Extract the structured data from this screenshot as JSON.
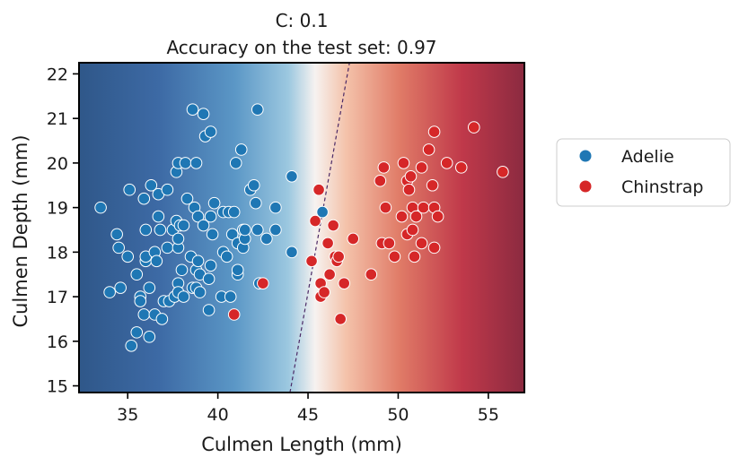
{
  "chart_data": {
    "type": "scatter",
    "title": "C: 0.1",
    "subtitle": "Accuracy on the test set: 0.97",
    "xlabel": "Culmen Length (mm)",
    "ylabel": "Culmen Depth (mm)",
    "xlim": [
      32.3,
      57.0
    ],
    "ylim": [
      14.85,
      22.25
    ],
    "xticks": [
      35,
      40,
      45,
      50,
      55
    ],
    "yticks": [
      15,
      16,
      17,
      18,
      19,
      20,
      21,
      22
    ],
    "xtick_labels": [
      "35",
      "40",
      "45",
      "50",
      "55"
    ],
    "ytick_labels": [
      "15",
      "16",
      "17",
      "18",
      "19",
      "20",
      "21",
      "22"
    ],
    "legend_position": "right",
    "grid": false,
    "background": "diverging decision function RdBu, blue for Adelie, red for Chinstrap",
    "decision_boundary": [
      [
        44.0,
        14.85
      ],
      [
        47.3,
        22.25
      ]
    ],
    "colors": {
      "Adelie": "#1f77b4",
      "Chinstrap": "#d62728",
      "boundary": "#4b2a66",
      "bg_blue": "#2f5789",
      "bg_red": "#8b2a40"
    },
    "series": [
      {
        "name": "Adelie",
        "points": [
          [
            33.5,
            19.0
          ],
          [
            34.0,
            17.1
          ],
          [
            34.4,
            18.4
          ],
          [
            34.5,
            18.1
          ],
          [
            34.6,
            17.2
          ],
          [
            35.0,
            17.9
          ],
          [
            35.1,
            19.4
          ],
          [
            35.2,
            15.9
          ],
          [
            35.5,
            16.2
          ],
          [
            35.5,
            17.5
          ],
          [
            35.7,
            17.0
          ],
          [
            35.7,
            16.9
          ],
          [
            35.9,
            19.2
          ],
          [
            35.9,
            16.6
          ],
          [
            36.0,
            17.8
          ],
          [
            36.0,
            17.9
          ],
          [
            36.0,
            18.5
          ],
          [
            36.2,
            16.1
          ],
          [
            36.2,
            17.2
          ],
          [
            36.3,
            19.5
          ],
          [
            36.5,
            16.6
          ],
          [
            36.5,
            18.0
          ],
          [
            36.6,
            17.8
          ],
          [
            36.7,
            19.3
          ],
          [
            36.7,
            18.8
          ],
          [
            36.8,
            18.5
          ],
          [
            36.9,
            16.5
          ],
          [
            37.0,
            16.9
          ],
          [
            37.2,
            18.1
          ],
          [
            37.2,
            19.4
          ],
          [
            37.3,
            16.9
          ],
          [
            37.5,
            18.5
          ],
          [
            37.6,
            17.0
          ],
          [
            37.7,
            18.7
          ],
          [
            37.7,
            19.8
          ],
          [
            37.8,
            17.3
          ],
          [
            37.8,
            17.1
          ],
          [
            37.8,
            18.1
          ],
          [
            37.8,
            18.3
          ],
          [
            37.8,
            20.0
          ],
          [
            37.9,
            18.6
          ],
          [
            38.0,
            17.6
          ],
          [
            38.1,
            18.6
          ],
          [
            38.1,
            17.0
          ],
          [
            38.2,
            20.0
          ],
          [
            38.3,
            19.2
          ],
          [
            38.5,
            17.9
          ],
          [
            38.6,
            17.2
          ],
          [
            38.6,
            21.2
          ],
          [
            38.7,
            19.0
          ],
          [
            38.8,
            17.2
          ],
          [
            38.8,
            20.0
          ],
          [
            38.8,
            17.6
          ],
          [
            38.9,
            17.8
          ],
          [
            38.9,
            18.8
          ],
          [
            39.0,
            17.1
          ],
          [
            39.0,
            17.5
          ],
          [
            39.2,
            18.6
          ],
          [
            39.2,
            21.1
          ],
          [
            39.3,
            20.6
          ],
          [
            39.5,
            17.4
          ],
          [
            39.5,
            16.7
          ],
          [
            39.6,
            17.7
          ],
          [
            39.6,
            18.8
          ],
          [
            39.6,
            20.7
          ],
          [
            39.7,
            18.4
          ],
          [
            39.8,
            19.1
          ],
          [
            40.2,
            17.0
          ],
          [
            40.3,
            18.0
          ],
          [
            40.3,
            18.9
          ],
          [
            40.5,
            17.9
          ],
          [
            40.6,
            18.9
          ],
          [
            40.7,
            17.0
          ],
          [
            40.8,
            18.4
          ],
          [
            40.9,
            18.9
          ],
          [
            41.0,
            20.0
          ],
          [
            41.1,
            17.5
          ],
          [
            41.1,
            18.2
          ],
          [
            41.1,
            17.6
          ],
          [
            41.3,
            20.3
          ],
          [
            41.4,
            18.5
          ],
          [
            41.4,
            18.1
          ],
          [
            41.5,
            18.3
          ],
          [
            41.5,
            18.5
          ],
          [
            41.8,
            19.4
          ],
          [
            42.0,
            19.5
          ],
          [
            42.1,
            19.1
          ],
          [
            42.2,
            18.5
          ],
          [
            42.2,
            21.2
          ],
          [
            42.3,
            17.3
          ],
          [
            42.7,
            18.3
          ],
          [
            43.2,
            19.0
          ],
          [
            43.2,
            18.5
          ],
          [
            44.1,
            19.7
          ],
          [
            44.1,
            18.0
          ],
          [
            45.8,
            18.9
          ]
        ]
      },
      {
        "name": "Chinstrap",
        "points": [
          [
            40.9,
            16.6
          ],
          [
            42.5,
            17.3
          ],
          [
            45.2,
            17.8
          ],
          [
            45.4,
            18.7
          ],
          [
            45.6,
            19.4
          ],
          [
            45.7,
            17.3
          ],
          [
            45.7,
            17.0
          ],
          [
            45.9,
            17.1
          ],
          [
            46.1,
            18.2
          ],
          [
            46.2,
            17.5
          ],
          [
            46.4,
            18.6
          ],
          [
            46.5,
            17.9
          ],
          [
            46.6,
            17.8
          ],
          [
            46.7,
            17.9
          ],
          [
            46.8,
            16.5
          ],
          [
            47.0,
            17.3
          ],
          [
            47.5,
            18.3
          ],
          [
            48.5,
            17.5
          ],
          [
            49.0,
            19.6
          ],
          [
            49.1,
            18.2
          ],
          [
            49.2,
            19.9
          ],
          [
            49.3,
            19.0
          ],
          [
            49.5,
            18.2
          ],
          [
            49.8,
            17.9
          ],
          [
            50.2,
            18.8
          ],
          [
            50.3,
            20.0
          ],
          [
            50.5,
            19.6
          ],
          [
            50.5,
            18.4
          ],
          [
            50.6,
            19.4
          ],
          [
            50.7,
            19.7
          ],
          [
            50.8,
            18.5
          ],
          [
            50.8,
            19.0
          ],
          [
            50.9,
            17.9
          ],
          [
            51.0,
            18.8
          ],
          [
            51.3,
            19.9
          ],
          [
            51.3,
            18.2
          ],
          [
            51.4,
            19.0
          ],
          [
            51.7,
            20.3
          ],
          [
            51.9,
            19.5
          ],
          [
            52.0,
            20.7
          ],
          [
            52.0,
            18.1
          ],
          [
            52.0,
            19.0
          ],
          [
            52.2,
            18.8
          ],
          [
            52.7,
            20.0
          ],
          [
            53.5,
            19.9
          ],
          [
            54.2,
            20.8
          ],
          [
            55.8,
            19.8
          ]
        ]
      }
    ]
  }
}
